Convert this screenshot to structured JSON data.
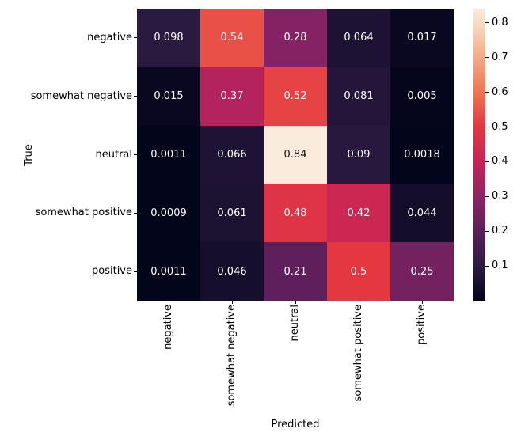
{
  "chart_data": {
    "type": "heatmap",
    "title": "",
    "xlabel": "Predicted",
    "ylabel": "True",
    "x_categories": [
      "negative",
      "somewhat negative",
      "neutral",
      "somewhat positive",
      "positive"
    ],
    "y_categories": [
      "negative",
      "somewhat negative",
      "neutral",
      "somewhat positive",
      "positive"
    ],
    "values": [
      [
        0.098,
        0.54,
        0.28,
        0.064,
        0.017
      ],
      [
        0.015,
        0.37,
        0.52,
        0.081,
        0.005
      ],
      [
        0.0011,
        0.066,
        0.84,
        0.09,
        0.0018
      ],
      [
        0.0009,
        0.061,
        0.48,
        0.42,
        0.044
      ],
      [
        0.0011,
        0.046,
        0.21,
        0.5,
        0.25
      ]
    ],
    "labels": [
      [
        "0.098",
        "0.54",
        "0.28",
        "0.064",
        "0.017"
      ],
      [
        "0.015",
        "0.37",
        "0.52",
        "0.081",
        "0.005"
      ],
      [
        "0.0011",
        "0.066",
        "0.84",
        "0.09",
        "0.0018"
      ],
      [
        "0.0009",
        "0.061",
        "0.48",
        "0.42",
        "0.044"
      ],
      [
        "0.0011",
        "0.046",
        "0.21",
        "0.5",
        "0.25"
      ]
    ],
    "vmin": 0.0009,
    "vmax": 0.84,
    "grid": false,
    "legend_position": "right-colorbar",
    "colormap": {
      "name": "rocket",
      "anchors": [
        {
          "t": 0.0,
          "color": "#03051A"
        },
        {
          "t": 0.1181,
          "color": "#2C1A41"
        },
        {
          "t": 0.2373,
          "color": "#5A1F5C"
        },
        {
          "t": 0.3565,
          "color": "#8F2365"
        },
        {
          "t": 0.4757,
          "color": "#C62358"
        },
        {
          "t": 0.5948,
          "color": "#E43841"
        },
        {
          "t": 0.714,
          "color": "#F0744F"
        },
        {
          "t": 0.8332,
          "color": "#F5A988"
        },
        {
          "t": 0.9524,
          "color": "#F8DCC2"
        },
        {
          "t": 1.0,
          "color": "#FAEBDD"
        }
      ]
    },
    "colorbar_ticks": [
      {
        "label": "0.8",
        "value": 0.8
      },
      {
        "label": "0.7",
        "value": 0.7
      },
      {
        "label": "0.6",
        "value": 0.6
      },
      {
        "label": "0.5",
        "value": 0.5
      },
      {
        "label": "0.4",
        "value": 0.4
      },
      {
        "label": "0.3",
        "value": 0.3
      },
      {
        "label": "0.2",
        "value": 0.2
      },
      {
        "label": "0.1",
        "value": 0.1
      }
    ],
    "annotation_colors": {
      "on_dark": "#FFFFFF",
      "on_light": "#151515"
    }
  }
}
